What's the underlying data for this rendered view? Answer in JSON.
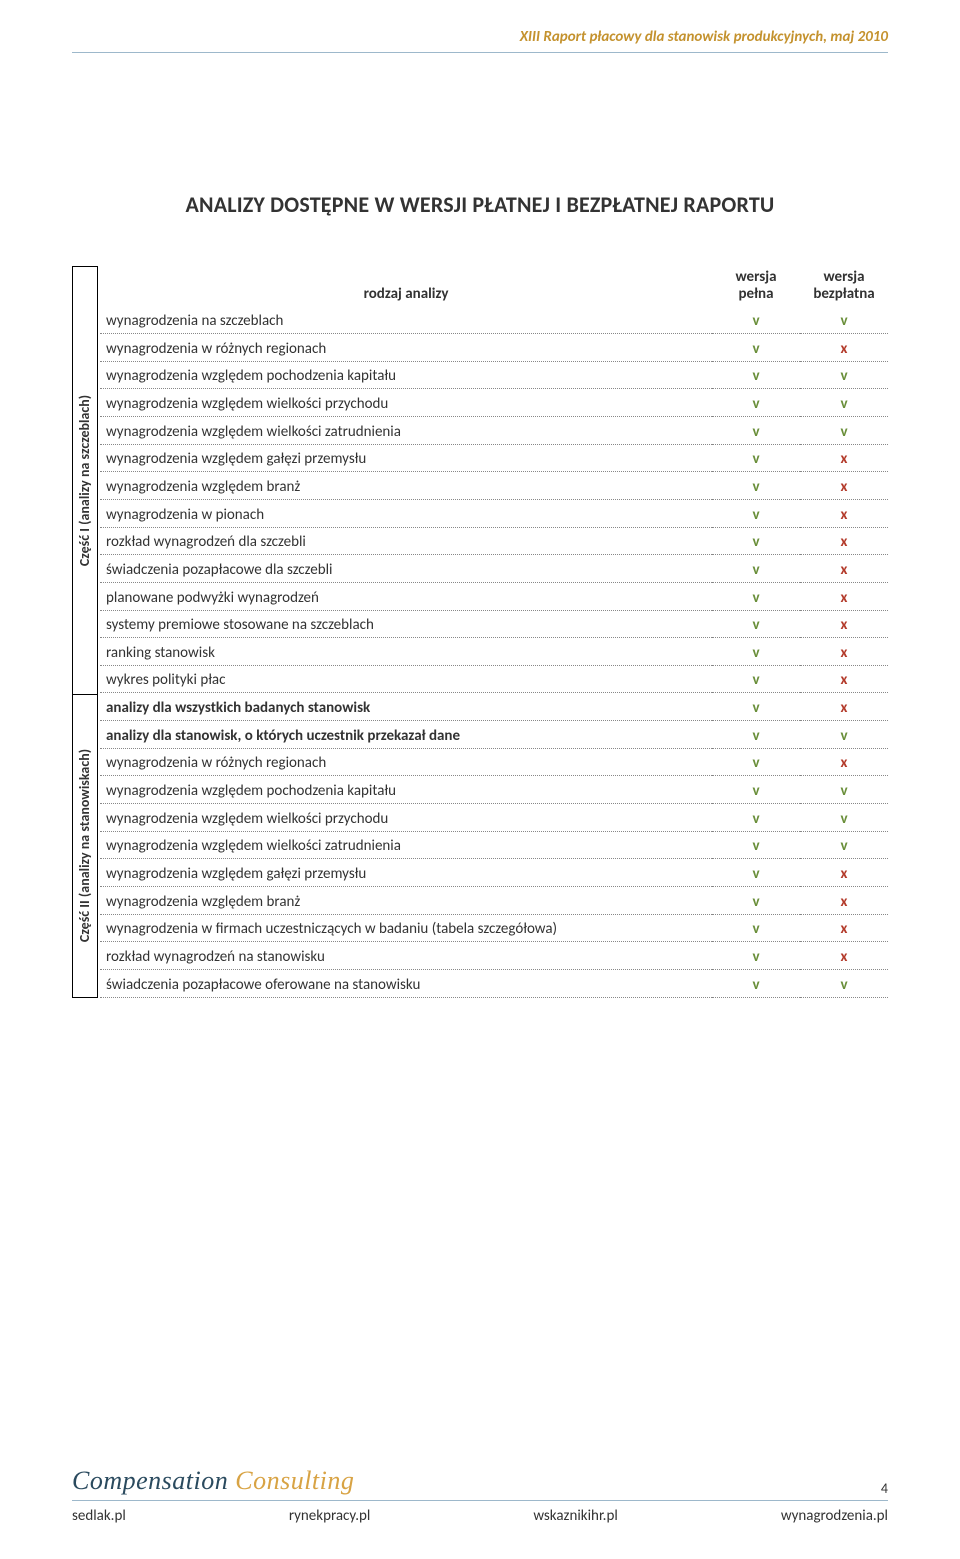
{
  "header": {
    "text": "XIII Raport płacowy dla stanowisk produkcyjnych, maj 2010"
  },
  "title": "ANALIZY DOSTĘPNE W WERSJI PŁATNEJ I BEZPŁATNEJ RAPORTU",
  "columns": {
    "label": "rodzaj analizy",
    "full": "wersja\npełna",
    "free": "wersja\nbezpłatna"
  },
  "side_labels": {
    "part1": "Część I (analizy na szczeblach)",
    "part2": "Część II (analizy na stanowiskach)"
  },
  "mark_colors": {
    "v": "#6a8f3a",
    "x": "#b33a2a"
  },
  "part1_rows": [
    {
      "label": "wynagrodzenia  na szczeblach",
      "full": "v",
      "free": "v",
      "bold": false
    },
    {
      "label": "wynagrodzenia w różnych regionach",
      "full": "v",
      "free": "x",
      "bold": false
    },
    {
      "label": "wynagrodzenia względem pochodzenia kapitału",
      "full": "v",
      "free": "v",
      "bold": false
    },
    {
      "label": "wynagrodzenia względem wielkości przychodu",
      "full": "v",
      "free": "v",
      "bold": false
    },
    {
      "label": "wynagrodzenia względem wielkości zatrudnienia",
      "full": "v",
      "free": "v",
      "bold": false
    },
    {
      "label": "wynagrodzenia względem gałęzi przemysłu",
      "full": "v",
      "free": "x",
      "bold": false
    },
    {
      "label": "wynagrodzenia względem branż",
      "full": "v",
      "free": "x",
      "bold": false
    },
    {
      "label": "wynagrodzenia w pionach",
      "full": "v",
      "free": "x",
      "bold": false
    },
    {
      "label": "rozkład wynagrodzeń dla szczebli",
      "full": "v",
      "free": "x",
      "bold": false
    },
    {
      "label": "świadczenia pozapłacowe dla szczebli",
      "full": "v",
      "free": "x",
      "bold": false
    },
    {
      "label": "planowane podwyżki wynagrodzeń",
      "full": "v",
      "free": "x",
      "bold": false
    },
    {
      "label": "systemy premiowe stosowane na szczeblach",
      "full": "v",
      "free": "x",
      "bold": false
    },
    {
      "label": "ranking stanowisk",
      "full": "v",
      "free": "x",
      "bold": false
    },
    {
      "label": "wykres polityki płac",
      "full": "v",
      "free": "x",
      "bold": false
    }
  ],
  "part2_rows": [
    {
      "label": "analizy dla wszystkich badanych stanowisk",
      "full": "v",
      "free": "x",
      "bold": true
    },
    {
      "label": "analizy dla stanowisk, o których uczestnik przekazał dane",
      "full": "v",
      "free": "v",
      "bold": true
    },
    {
      "label": "wynagrodzenia w różnych regionach",
      "full": "v",
      "free": "x",
      "bold": false
    },
    {
      "label": "wynagrodzenia względem pochodzenia kapitału",
      "full": "v",
      "free": "v",
      "bold": false
    },
    {
      "label": "wynagrodzenia względem wielkości przychodu",
      "full": "v",
      "free": "v",
      "bold": false
    },
    {
      "label": "wynagrodzenia względem wielkości zatrudnienia",
      "full": "v",
      "free": "v",
      "bold": false
    },
    {
      "label": "wynagrodzenia względem gałęzi przemysłu",
      "full": "v",
      "free": "x",
      "bold": false
    },
    {
      "label": "wynagrodzenia względem branż",
      "full": "v",
      "free": "x",
      "bold": false
    },
    {
      "label": "wynagrodzenia w firmach uczestniczących w badaniu (tabela szczegółowa)",
      "full": "v",
      "free": "x",
      "bold": false
    },
    {
      "label": "rozkład wynagrodzeń na stanowisku",
      "full": "v",
      "free": "x",
      "bold": false
    },
    {
      "label": "świadczenia pozapłacowe oferowane na stanowisku",
      "full": "v",
      "free": "v",
      "bold": false
    }
  ],
  "footer": {
    "brand_dark": "Compensation",
    "brand_orange": "Consulting",
    "links": [
      "sedlak.pl",
      "rynekpracy.pl",
      "wskaznikihr.pl",
      "wynagrodzenia.pl"
    ]
  },
  "page_number": "4",
  "row_height": 27.5,
  "header_row_height": 44
}
